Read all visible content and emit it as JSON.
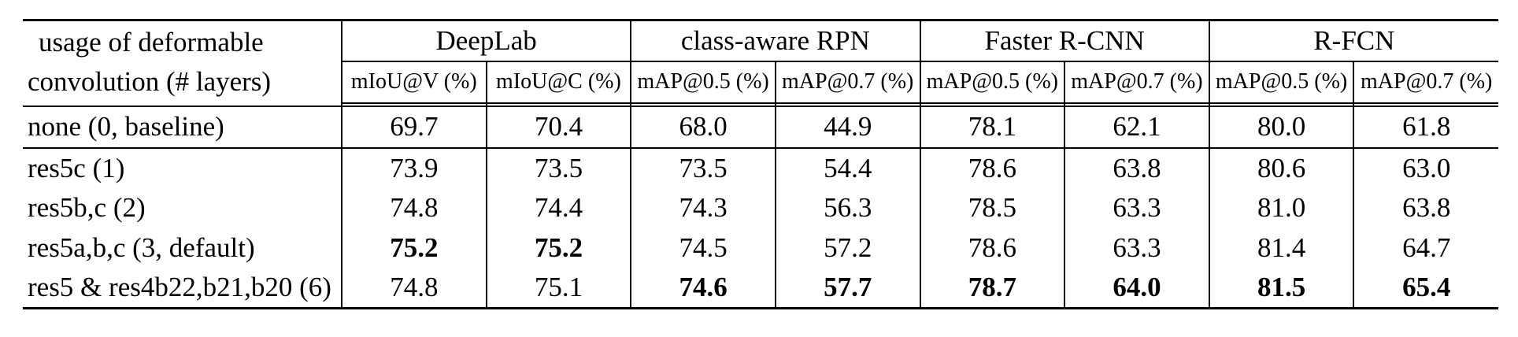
{
  "table": {
    "corner_header": {
      "line1": "usage of deformable",
      "line2": "convolution (# layers)"
    },
    "groups": [
      {
        "label": "DeepLab",
        "subcolumns": [
          "mIoU@V (%)",
          "mIoU@C (%)"
        ]
      },
      {
        "label": "class-aware RPN",
        "subcolumns": [
          "mAP@0.5 (%)",
          "mAP@0.7 (%)"
        ]
      },
      {
        "label": "Faster R-CNN",
        "subcolumns": [
          "mAP@0.5 (%)",
          "mAP@0.7 (%)"
        ]
      },
      {
        "label": "R-FCN",
        "subcolumns": [
          "mAP@0.5 (%)",
          "mAP@0.7 (%)"
        ]
      }
    ],
    "rows": [
      {
        "label": "none (0, baseline)",
        "values": [
          "69.7",
          "70.4",
          "68.0",
          "44.9",
          "78.1",
          "62.1",
          "80.0",
          "61.8"
        ],
        "bold": [
          false,
          false,
          false,
          false,
          false,
          false,
          false,
          false
        ]
      },
      {
        "label": "res5c (1)",
        "values": [
          "73.9",
          "73.5",
          "73.5",
          "54.4",
          "78.6",
          "63.8",
          "80.6",
          "63.0"
        ],
        "bold": [
          false,
          false,
          false,
          false,
          false,
          false,
          false,
          false
        ]
      },
      {
        "label": "res5b,c (2)",
        "values": [
          "74.8",
          "74.4",
          "74.3",
          "56.3",
          "78.5",
          "63.3",
          "81.0",
          "63.8"
        ],
        "bold": [
          false,
          false,
          false,
          false,
          false,
          false,
          false,
          false
        ]
      },
      {
        "label": "res5a,b,c (3, default)",
        "values": [
          "75.2",
          "75.2",
          "74.5",
          "57.2",
          "78.6",
          "63.3",
          "81.4",
          "64.7"
        ],
        "bold": [
          true,
          true,
          false,
          false,
          false,
          false,
          false,
          false
        ]
      },
      {
        "label": "res5 & res4b22,b21,b20 (6)",
        "values": [
          "74.8",
          "75.1",
          "74.6",
          "57.7",
          "78.7",
          "64.0",
          "81.5",
          "65.4"
        ],
        "bold": [
          false,
          false,
          true,
          true,
          true,
          true,
          true,
          true
        ]
      }
    ],
    "text_color": "#000000",
    "line_color": "#000000"
  }
}
